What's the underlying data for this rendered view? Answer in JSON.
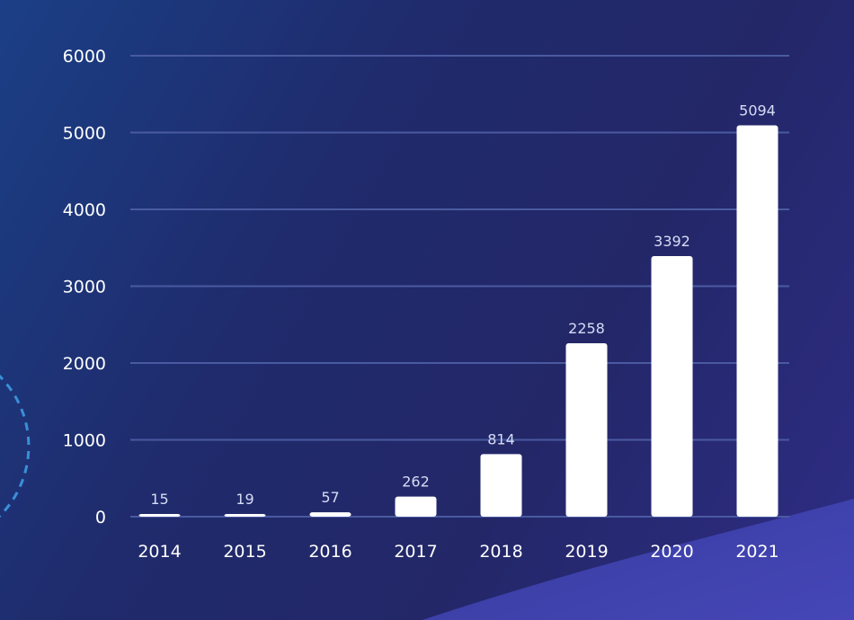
{
  "chart_data": {
    "type": "bar",
    "categories": [
      "2014",
      "2015",
      "2016",
      "2017",
      "2018",
      "2019",
      "2020",
      "2021"
    ],
    "values": [
      15,
      19,
      57,
      262,
      814,
      2258,
      3392,
      5094
    ],
    "data_labels": [
      "15",
      "19",
      "57",
      "262",
      "814",
      "2258",
      "3392",
      "5094"
    ],
    "yticks": [
      0,
      1000,
      2000,
      3000,
      4000,
      5000,
      6000
    ],
    "ytick_labels": [
      "0",
      "1000",
      "2000",
      "3000",
      "4000",
      "5000",
      "6000"
    ],
    "ylim": [
      0,
      6000
    ],
    "title": "",
    "xlabel": "",
    "ylabel": "",
    "grid": "horizontal",
    "legend": "none",
    "colors": {
      "bar": "#ffffff",
      "gridline": "#4a5aa0",
      "tick_text": "#ffffff",
      "value_text": "#d7dcf5"
    }
  }
}
